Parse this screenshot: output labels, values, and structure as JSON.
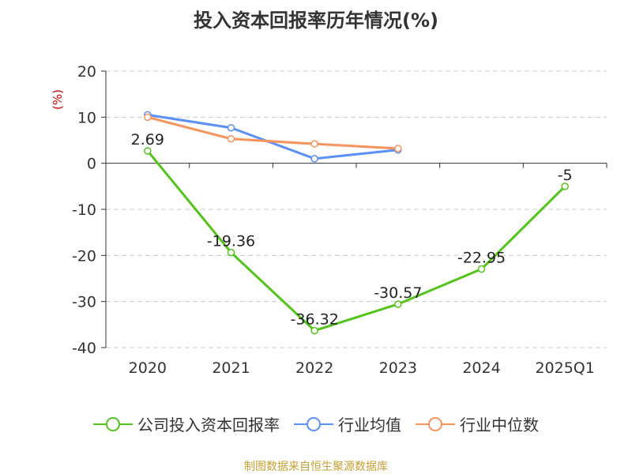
{
  "chart_data": {
    "type": "line",
    "title": "投入资本回报率历年情况(%)",
    "ylabel": "(%)",
    "xlabel": "",
    "categories": [
      "2020",
      "2021",
      "2022",
      "2023",
      "2024",
      "2025Q1"
    ],
    "ylim": [
      -40,
      20
    ],
    "yticks": [
      20,
      10,
      0,
      -10,
      -20,
      -30,
      -40
    ],
    "grid": true,
    "legend_position": "bottom",
    "series": [
      {
        "name": "公司投入资本回报率",
        "color": "#52c41a",
        "values": [
          2.69,
          -19.36,
          -36.32,
          -30.57,
          -22.95,
          -5
        ],
        "labels": [
          "2.69",
          "-19.36",
          "-36.32",
          "-30.57",
          "-22.95",
          "-5"
        ],
        "show_labels": true
      },
      {
        "name": "行业均值",
        "color": "#5b8ff9",
        "values": [
          10.5,
          7.7,
          1.0,
          2.9,
          null,
          null
        ],
        "show_labels": false
      },
      {
        "name": "行业中位数",
        "color": "#f7935c",
        "values": [
          10.0,
          5.3,
          4.2,
          3.2,
          null,
          null
        ],
        "show_labels": false
      }
    ]
  },
  "source": {
    "text": "制图数据来自恒生聚源数据库",
    "color": "#c8a033"
  },
  "axis_label_color": "#cc0000"
}
